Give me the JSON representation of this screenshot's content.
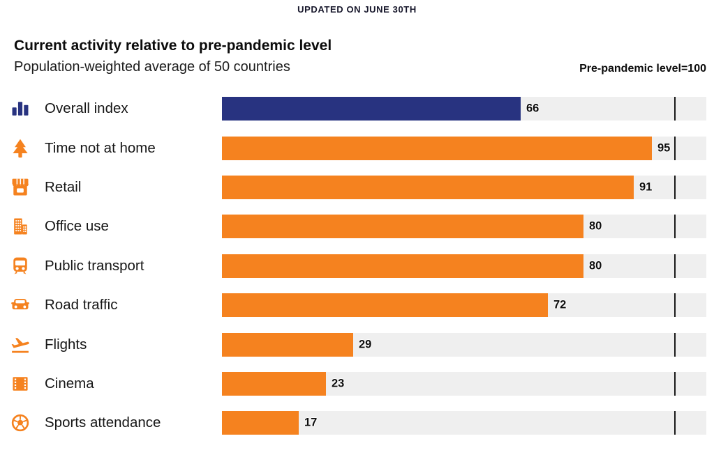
{
  "header": {
    "updated": "UPDATED ON JUNE 30TH",
    "title": "Current activity relative to pre-pandemic level",
    "subtitle": "Population-weighted average of 50 countries",
    "axis_note": "Pre-pandemic level=100"
  },
  "colors": {
    "navy": "#283380",
    "orange": "#f5821f",
    "track": "#efefef",
    "reference_line": "#1a1a1a"
  },
  "chart_data": {
    "type": "bar",
    "orientation": "horizontal",
    "title": "Current activity relative to pre-pandemic level",
    "subtitle": "Population-weighted average of 50 countries",
    "annotation": "Pre-pandemic level=100",
    "updated_label": "UPDATED ON JUNE 30TH",
    "reference_value": 100,
    "xlim": [
      0,
      107
    ],
    "grid": false,
    "legend": false,
    "categories": [
      "Overall index",
      "Time not at home",
      "Retail",
      "Office use",
      "Public transport",
      "Road traffic",
      "Flights",
      "Cinema",
      "Sports attendance"
    ],
    "values": [
      66,
      95,
      91,
      80,
      80,
      72,
      29,
      23,
      17
    ],
    "rows": [
      {
        "label": "Overall index",
        "value": 66,
        "icon": "bar-chart-icon",
        "color": "#283380"
      },
      {
        "label": "Time not at home",
        "value": 95,
        "icon": "tree-icon",
        "color": "#f5821f"
      },
      {
        "label": "Retail",
        "value": 91,
        "icon": "storefront-icon",
        "color": "#f5821f"
      },
      {
        "label": "Office use",
        "value": 80,
        "icon": "office-building-icon",
        "color": "#f5821f"
      },
      {
        "label": "Public transport",
        "value": 80,
        "icon": "bus-icon",
        "color": "#f5821f"
      },
      {
        "label": "Road traffic",
        "value": 72,
        "icon": "car-icon",
        "color": "#f5821f"
      },
      {
        "label": "Flights",
        "value": 29,
        "icon": "plane-takeoff-icon",
        "color": "#f5821f"
      },
      {
        "label": "Cinema",
        "value": 23,
        "icon": "film-strip-icon",
        "color": "#f5821f"
      },
      {
        "label": "Sports attendance",
        "value": 17,
        "icon": "soccer-ball-icon",
        "color": "#f5821f"
      }
    ]
  }
}
